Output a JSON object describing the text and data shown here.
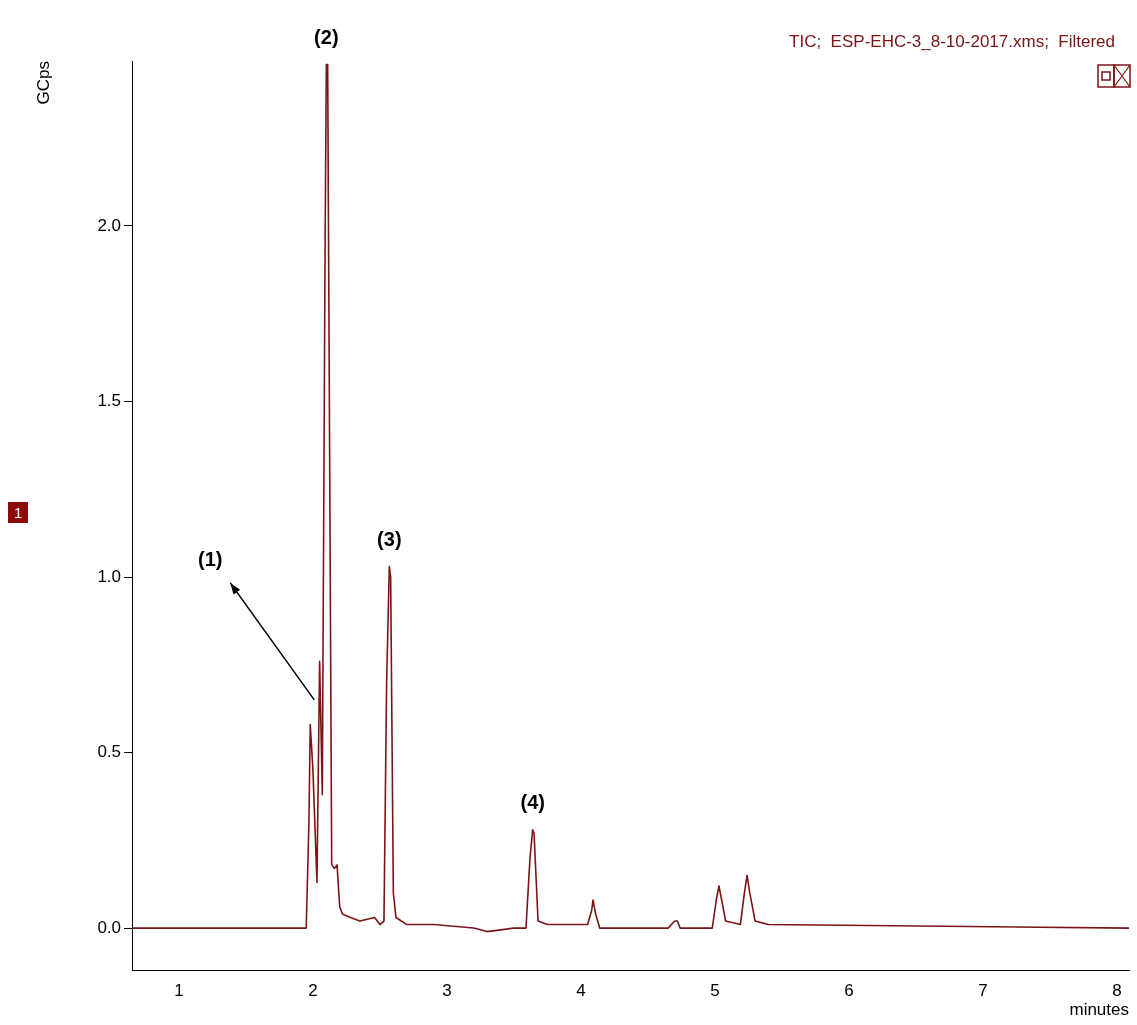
{
  "chart_data": {
    "type": "line",
    "xlabel": "minutes",
    "ylabel": "GCps",
    "x": [
      0.65,
      1.95,
      1.97,
      1.98,
      2.0,
      2.03,
      2.05,
      2.07,
      2.09,
      2.1,
      2.11,
      2.14,
      2.16,
      2.18,
      2.2,
      2.22,
      2.28,
      2.35,
      2.46,
      2.5,
      2.53,
      2.55,
      2.57,
      2.58,
      2.6,
      2.62,
      2.7,
      2.9,
      3.2,
      3.3,
      3.5,
      3.59,
      3.62,
      3.64,
      3.65,
      3.68,
      3.75,
      4.05,
      4.08,
      4.09,
      4.11,
      4.14,
      4.65,
      4.7,
      4.72,
      4.74,
      4.98,
      5.01,
      5.03,
      5.05,
      5.08,
      5.19,
      5.22,
      5.24,
      5.26,
      5.3,
      5.4,
      8.09
    ],
    "series": [
      {
        "name": "TIC;  ESP-EHC-3_8-10-2017.xms;  Filtered",
        "color": "#7b1416",
        "values": [
          0,
          0,
          0.3,
          0.58,
          0.45,
          0.13,
          0.76,
          0.38,
          1.9,
          2.46,
          2.46,
          0.18,
          0.17,
          0.18,
          0.06,
          0.04,
          0.03,
          0.02,
          0.03,
          0.01,
          0.02,
          0.7,
          1.03,
          1.0,
          0.1,
          0.03,
          0.01,
          0.01,
          0,
          -0.01,
          0,
          0,
          0.2,
          0.28,
          0.27,
          0.02,
          0.01,
          0.01,
          0.05,
          0.08,
          0.04,
          0,
          0,
          0.02,
          0.02,
          0,
          0,
          0.08,
          0.12,
          0.08,
          0.02,
          0.01,
          0.1,
          0.15,
          0.1,
          0.02,
          0.01,
          0
        ]
      }
    ],
    "xlim": [
      0.65,
      8.09
    ],
    "ylim": [
      -0.12,
      2.47
    ],
    "xticks": [
      1,
      2,
      3,
      4,
      5,
      6,
      7,
      8
    ],
    "yticks": [
      {
        "value": 0,
        "label": "0.0"
      },
      {
        "value": 0.5,
        "label": "0.5"
      },
      {
        "value": 1,
        "label": "1.0"
      },
      {
        "value": 1.5,
        "label": "1.5"
      },
      {
        "value": 2,
        "label": "2.0"
      }
    ],
    "annotations": [
      {
        "text": "(1)",
        "x": 2.01,
        "y": 0.65
      },
      {
        "text": "(2)",
        "x": 2.1,
        "y": 2.46
      },
      {
        "text": "(3)",
        "x": 2.57,
        "y": 1.03
      },
      {
        "text": "(4)",
        "x": 3.64,
        "y": 0.28
      },
      "1"
    ],
    "grid": false,
    "legend": "top right",
    "marker": "none",
    "line_style": "solid"
  }
}
